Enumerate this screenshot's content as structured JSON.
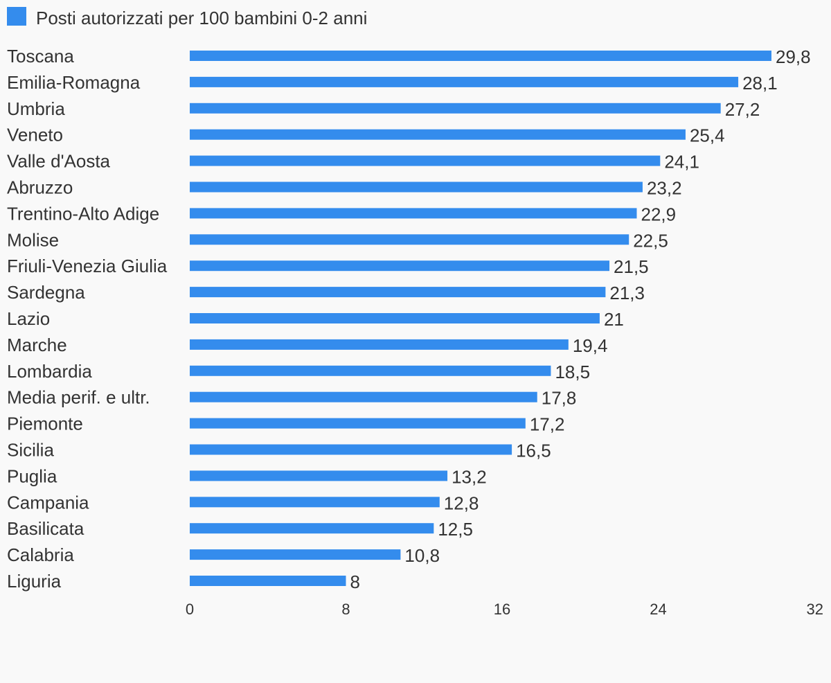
{
  "chart_data": {
    "type": "bar",
    "orientation": "horizontal",
    "legend_position": "top-left",
    "grid": false,
    "color": "#348ced",
    "series": [
      {
        "name": "Posti autorizzati per 100 bambini 0-2 anni",
        "values": [
          29.8,
          28.1,
          27.2,
          25.4,
          24.1,
          23.2,
          22.9,
          22.5,
          21.5,
          21.3,
          21,
          19.4,
          18.5,
          17.8,
          17.2,
          16.5,
          13.2,
          12.8,
          12.5,
          10.8,
          8
        ]
      }
    ],
    "categories": [
      "Toscana",
      "Emilia-Romagna",
      "Umbria",
      "Veneto",
      "Valle d'Aosta",
      "Abruzzo",
      "Trentino-Alto Adige",
      "Molise",
      "Friuli-Venezia Giulia",
      "Sardegna",
      "Lazio",
      "Marche",
      "Lombardia",
      "Media perif. e ultr.",
      "Piemonte",
      "Sicilia",
      "Puglia",
      "Campania",
      "Basilicata",
      "Calabria",
      "Liguria"
    ],
    "value_labels": [
      "29,8",
      "28,1",
      "27,2",
      "25,4",
      "24,1",
      "23,2",
      "22,9",
      "22,5",
      "21,5",
      "21,3",
      "21",
      "19,4",
      "18,5",
      "17,8",
      "17,2",
      "16,5",
      "13,2",
      "12,8",
      "12,5",
      "10,8",
      "8"
    ],
    "xlim": [
      0,
      32
    ],
    "x_ticks": [
      0,
      8,
      16,
      24,
      32
    ],
    "x_tick_labels": [
      "0",
      "8",
      "16",
      "24",
      "32"
    ],
    "title": "",
    "xlabel": "",
    "ylabel": ""
  }
}
